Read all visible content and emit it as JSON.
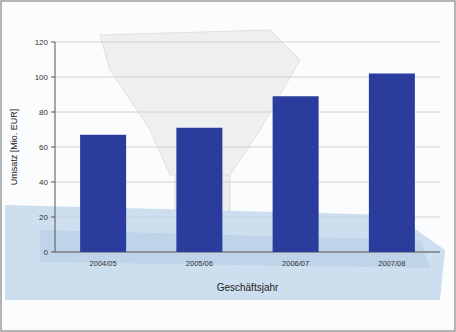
{
  "chart_data": {
    "type": "bar",
    "title": null,
    "x_label": "Geschäftsjahr",
    "y_label": "Umsatz [Mio. EUR]",
    "categories": [
      "2004/05",
      "2005/06",
      "2006/07",
      "2007/08"
    ],
    "values": [
      67,
      71,
      89,
      102
    ],
    "color": "#2a3c9c",
    "ylim": [
      0,
      120
    ],
    "yticks": [
      0,
      20,
      40,
      60,
      80,
      100,
      120
    ],
    "grid": true
  }
}
